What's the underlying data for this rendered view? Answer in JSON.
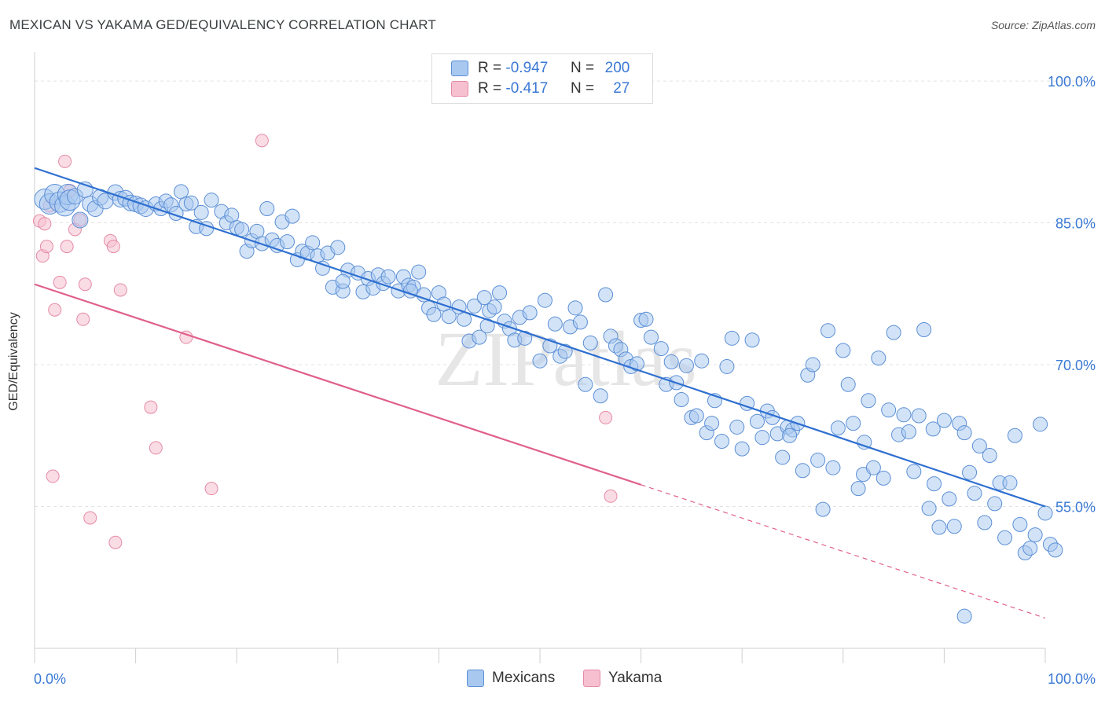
{
  "title": "MEXICAN VS YAKAMA GED/EQUIVALENCY CORRELATION CHART",
  "source": "Source: ZipAtlas.com",
  "watermark": "ZIPatlas",
  "colors": {
    "blue_fill": "#a8c8f0",
    "blue_stroke": "#5b8fd6",
    "blue_line": "#2e6fd0",
    "pink_fill": "#f6c0d0",
    "pink_stroke": "#e58aa6",
    "pink_line": "#e0608a",
    "axis_text": "#3a78d4"
  },
  "legend": {
    "rows": [
      {
        "r_label": "R =",
        "r_value": "-0.947",
        "n_label": "N =",
        "n_value": "200"
      },
      {
        "r_label": "R =",
        "r_value": "-0.417",
        "n_label": "N =",
        "n_value": "27"
      }
    ]
  },
  "bottom_legend": [
    "Mexicans",
    "Yakama"
  ],
  "chart_data": {
    "type": "scatter",
    "title": "MEXICAN VS YAKAMA GED/EQUIVALENCY CORRELATION CHART",
    "xlabel": "",
    "ylabel": "GED/Equivalency",
    "xlim": [
      0,
      100
    ],
    "ylim": [
      40,
      102
    ],
    "x_tick_labels": [
      "0.0%",
      "100.0%"
    ],
    "y_tick_labels": [
      "100.0%",
      "85.0%",
      "70.0%",
      "55.0%"
    ],
    "y_ticks": [
      100,
      85,
      70,
      55
    ],
    "grid": "horizontal dashed",
    "legend_position": "top-center",
    "series": [
      {
        "name": "Mexicans",
        "R": -0.947,
        "N": 200,
        "trend": {
          "x": [
            0,
            100
          ],
          "y": [
            90.8,
            55.0
          ]
        },
        "points": [
          [
            1,
            87.5
          ],
          [
            1.5,
            87
          ],
          [
            2,
            88
          ],
          [
            2.5,
            87.2
          ],
          [
            3,
            86.8
          ],
          [
            3.3,
            88
          ],
          [
            3.5,
            87.4
          ],
          [
            4,
            87.8
          ],
          [
            4.5,
            85.3
          ],
          [
            5,
            88.5
          ],
          [
            5.5,
            87
          ],
          [
            6,
            86.5
          ],
          [
            6.5,
            87.7
          ],
          [
            7,
            87.3
          ],
          [
            8,
            88.2
          ],
          [
            8.5,
            87.5
          ],
          [
            9,
            87.6
          ],
          [
            9.5,
            87.1
          ],
          [
            10,
            87
          ],
          [
            10.5,
            86.8
          ],
          [
            11,
            86.5
          ],
          [
            12,
            87
          ],
          [
            12.5,
            86.5
          ],
          [
            13,
            87.3
          ],
          [
            13.5,
            86.9
          ],
          [
            14,
            86
          ],
          [
            14.5,
            88.3
          ],
          [
            15,
            87
          ],
          [
            15.5,
            87.1
          ],
          [
            16.5,
            86.1
          ],
          [
            16,
            84.6
          ],
          [
            17,
            84.4
          ],
          [
            17.5,
            87.4
          ],
          [
            18.5,
            86.2
          ],
          [
            19,
            85
          ],
          [
            19.5,
            85.8
          ],
          [
            20,
            84.5
          ],
          [
            20.5,
            84.3
          ],
          [
            21,
            82
          ],
          [
            21.5,
            83.1
          ],
          [
            22,
            84.1
          ],
          [
            22.5,
            82.8
          ],
          [
            23,
            86.5
          ],
          [
            23.5,
            83.2
          ],
          [
            24,
            82.6
          ],
          [
            24.5,
            85.1
          ],
          [
            25,
            83
          ],
          [
            25.5,
            85.7
          ],
          [
            26,
            81.1
          ],
          [
            26.5,
            82
          ],
          [
            27,
            81.8
          ],
          [
            27.5,
            82.9
          ],
          [
            28,
            81.5
          ],
          [
            28.5,
            80.2
          ],
          [
            29,
            81.8
          ],
          [
            29.5,
            78.2
          ],
          [
            30,
            82.4
          ],
          [
            30.5,
            77.8
          ],
          [
            31,
            80
          ],
          [
            32,
            79.7
          ],
          [
            32.5,
            77.7
          ],
          [
            33,
            79.1
          ],
          [
            33.5,
            78.1
          ],
          [
            34,
            79.5
          ],
          [
            34.5,
            78.6
          ],
          [
            35,
            79.3
          ],
          [
            36,
            77.8
          ],
          [
            36.5,
            79.3
          ],
          [
            37,
            78.4
          ],
          [
            37.5,
            78.2
          ],
          [
            38,
            79.8
          ],
          [
            38.5,
            77.4
          ],
          [
            39,
            76
          ],
          [
            39.5,
            75.3
          ],
          [
            40,
            77.6
          ],
          [
            40.5,
            76.4
          ],
          [
            41,
            75.1
          ],
          [
            42,
            76.1
          ],
          [
            42.5,
            74.8
          ],
          [
            43,
            72.5
          ],
          [
            43.5,
            76.2
          ],
          [
            44,
            72.9
          ],
          [
            44.5,
            77.1
          ],
          [
            45,
            75.7
          ],
          [
            45.5,
            76.1
          ],
          [
            46,
            77.6
          ],
          [
            46.5,
            74.6
          ],
          [
            47,
            73.8
          ],
          [
            47.5,
            72.6
          ],
          [
            48,
            75
          ],
          [
            48.5,
            72.8
          ],
          [
            49,
            75.5
          ],
          [
            50,
            70.4
          ],
          [
            50.5,
            76.8
          ],
          [
            51,
            72
          ],
          [
            51.5,
            74.3
          ],
          [
            52,
            70.9
          ],
          [
            53,
            74
          ],
          [
            53.5,
            76
          ],
          [
            54,
            74.5
          ],
          [
            54.5,
            67.9
          ],
          [
            55,
            72.3
          ],
          [
            56,
            66.7
          ],
          [
            56.5,
            77.4
          ],
          [
            57,
            73
          ],
          [
            57.5,
            72
          ],
          [
            58,
            71.6
          ],
          [
            58.5,
            70.6
          ],
          [
            59,
            69.8
          ],
          [
            60,
            74.7
          ],
          [
            60.5,
            74.8
          ],
          [
            61,
            72.9
          ],
          [
            62,
            71.7
          ],
          [
            62.5,
            67.9
          ],
          [
            63,
            70.3
          ],
          [
            63.5,
            68.1
          ],
          [
            64,
            66.3
          ],
          [
            64.5,
            69.9
          ],
          [
            65,
            64.4
          ],
          [
            65.5,
            64.6
          ],
          [
            66,
            70.4
          ],
          [
            66.5,
            62.8
          ],
          [
            67,
            63.8
          ],
          [
            68,
            61.9
          ],
          [
            68.5,
            69.8
          ],
          [
            69,
            72.8
          ],
          [
            69.5,
            63.4
          ],
          [
            70,
            61.1
          ],
          [
            70.5,
            65.9
          ],
          [
            71,
            72.6
          ],
          [
            71.5,
            64
          ],
          [
            72,
            62.3
          ],
          [
            72.5,
            65.1
          ],
          [
            73,
            64.4
          ],
          [
            73.5,
            62.7
          ],
          [
            74,
            60.2
          ],
          [
            74.5,
            63.4
          ],
          [
            75,
            63.1
          ],
          [
            75.5,
            63.8
          ],
          [
            76,
            58.8
          ],
          [
            76.5,
            68.9
          ],
          [
            77,
            70
          ],
          [
            77.5,
            59.9
          ],
          [
            78,
            54.7
          ],
          [
            78.5,
            73.6
          ],
          [
            79,
            59.1
          ],
          [
            79.5,
            63.3
          ],
          [
            80,
            71.5
          ],
          [
            80.5,
            67.9
          ],
          [
            81,
            63.8
          ],
          [
            81.5,
            56.9
          ],
          [
            82,
            58.4
          ],
          [
            82.5,
            66.2
          ],
          [
            83,
            59.1
          ],
          [
            83.5,
            70.7
          ],
          [
            84,
            58
          ],
          [
            84.5,
            65.2
          ],
          [
            85,
            73.4
          ],
          [
            85.5,
            62.6
          ],
          [
            86,
            64.7
          ],
          [
            86.5,
            62.9
          ],
          [
            87,
            58.7
          ],
          [
            87.5,
            64.6
          ],
          [
            88,
            73.7
          ],
          [
            88.5,
            54.8
          ],
          [
            89,
            57.4
          ],
          [
            89.5,
            52.8
          ],
          [
            90,
            64.1
          ],
          [
            90.5,
            55.8
          ],
          [
            91,
            52.9
          ],
          [
            91.5,
            63.8
          ],
          [
            92,
            62.8
          ],
          [
            92.5,
            58.6
          ],
          [
            93,
            56.4
          ],
          [
            93.5,
            61.4
          ],
          [
            94,
            53.3
          ],
          [
            94.5,
            60.4
          ],
          [
            95,
            55.3
          ],
          [
            95.5,
            57.5
          ],
          [
            96,
            51.7
          ],
          [
            96.5,
            57.5
          ],
          [
            97,
            62.5
          ],
          [
            97.5,
            53.1
          ],
          [
            98,
            50.1
          ],
          [
            98.5,
            50.6
          ],
          [
            99,
            52
          ],
          [
            99.5,
            63.7
          ],
          [
            100,
            54.3
          ],
          [
            100.5,
            51
          ],
          [
            101,
            50.4
          ],
          [
            92,
            43.4
          ],
          [
            30.5,
            78.8
          ],
          [
            37.2,
            77.8
          ],
          [
            44.8,
            74.1
          ],
          [
            52.5,
            71.4
          ],
          [
            59.6,
            70.1
          ],
          [
            67.3,
            66.2
          ],
          [
            74.7,
            62.5
          ],
          [
            82.1,
            61.8
          ],
          [
            88.9,
            63.2
          ]
        ]
      },
      {
        "name": "Yakama",
        "R": -0.417,
        "N": 27,
        "trend_solid": {
          "x": [
            0,
            60
          ],
          "y": [
            78.5,
            57.3
          ]
        },
        "trend_dashed": {
          "x": [
            60,
            100
          ],
          "y": [
            57.3,
            43.2
          ]
        },
        "points": [
          [
            0.5,
            85.2
          ],
          [
            0.8,
            81.5
          ],
          [
            1,
            84.9
          ],
          [
            1.2,
            82.5
          ],
          [
            1.5,
            86.8
          ],
          [
            2,
            75.8
          ],
          [
            2.5,
            78.7
          ],
          [
            3,
            91.5
          ],
          [
            3.2,
            82.5
          ],
          [
            3.5,
            88.4
          ],
          [
            4,
            84.3
          ],
          [
            4.5,
            85.3
          ],
          [
            4.8,
            74.8
          ],
          [
            5,
            78.5
          ],
          [
            7.5,
            83.1
          ],
          [
            7.8,
            82.5
          ],
          [
            8.5,
            77.9
          ],
          [
            11.5,
            65.5
          ],
          [
            12,
            61.2
          ],
          [
            15,
            72.9
          ],
          [
            17.5,
            56.9
          ],
          [
            22.5,
            93.7
          ],
          [
            56.5,
            64.4
          ],
          [
            57,
            56.1
          ],
          [
            1.8,
            58.2
          ],
          [
            5.5,
            53.8
          ],
          [
            8,
            51.2
          ]
        ]
      }
    ]
  }
}
